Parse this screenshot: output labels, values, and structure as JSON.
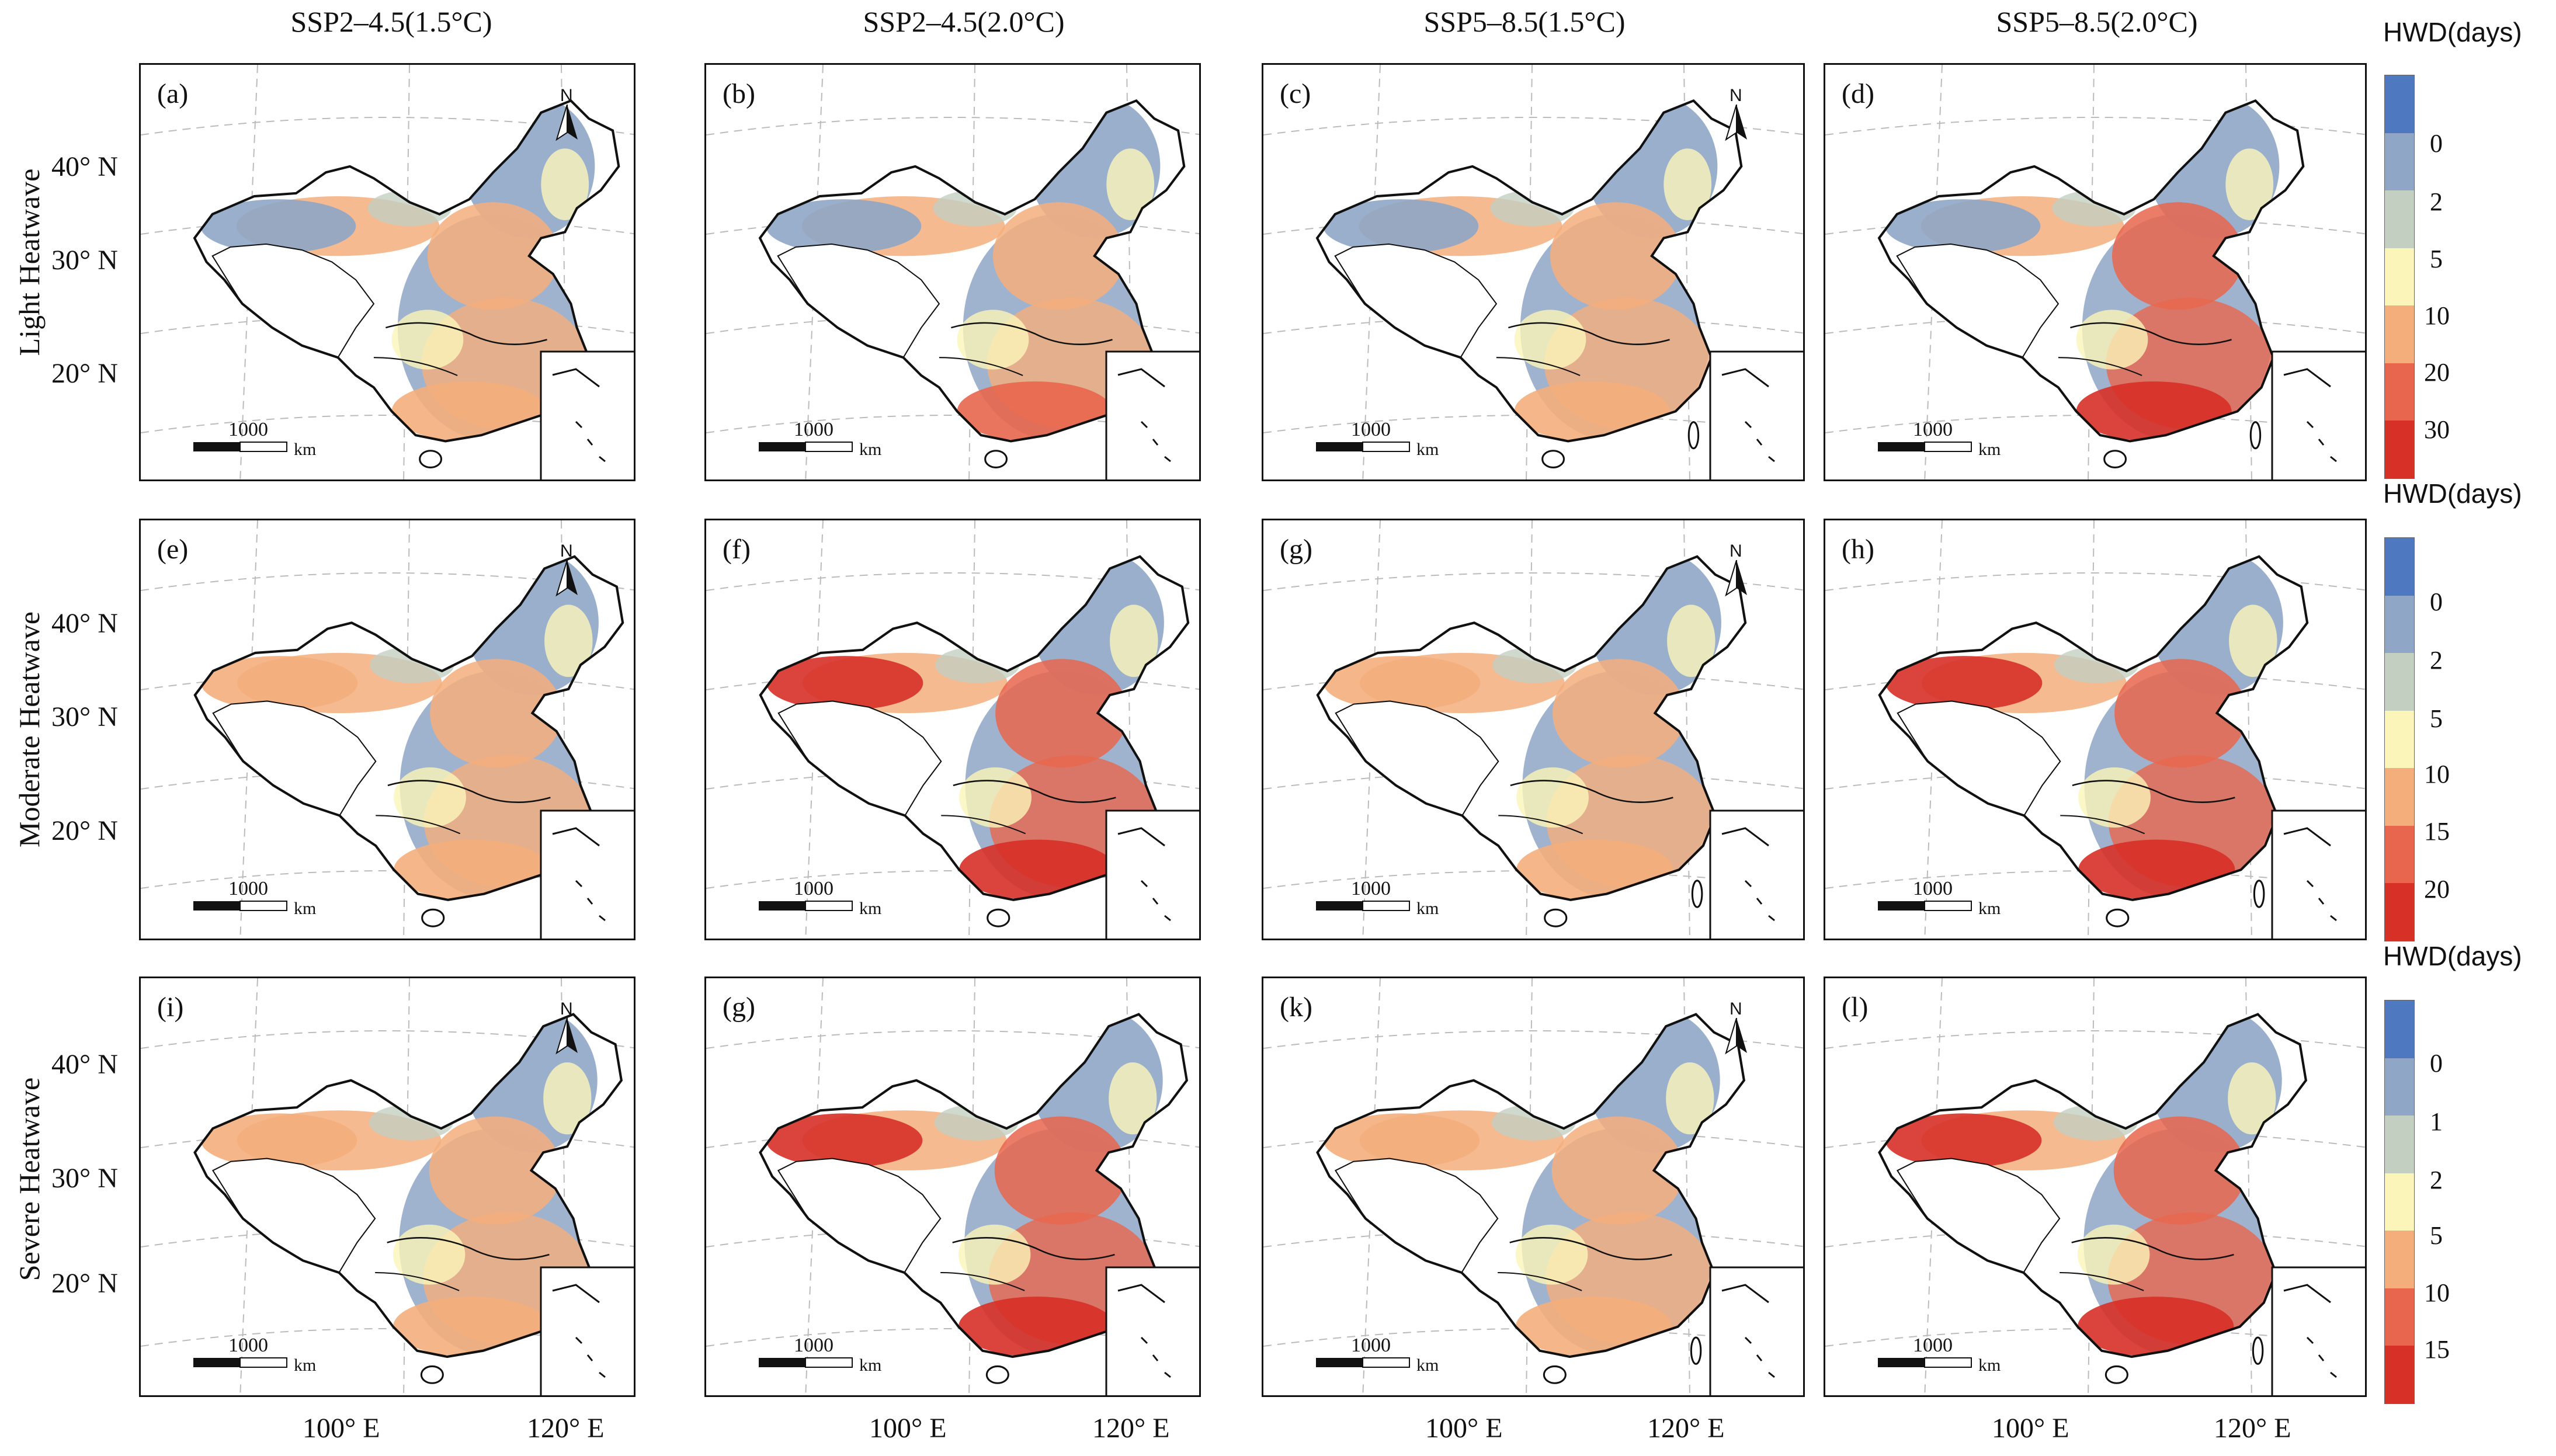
{
  "columns": [
    "SSP2–4.5(1.5°C)",
    "SSP2–4.5(2.0°C)",
    "SSP5–8.5(1.5°C)",
    "SSP5–8.5(2.0°C)"
  ],
  "rows": [
    "Light Heatwave",
    "Moderate Heatwave",
    "Severe Heatwave"
  ],
  "panels": [
    [
      "(a)",
      "(b)",
      "(c)",
      "(d)"
    ],
    [
      "(e)",
      "(f)",
      "(g)",
      "(h)"
    ],
    [
      "(i)",
      "(g)",
      "(k)",
      "(l)"
    ]
  ],
  "lat_labels": [
    "40° N",
    "30° N",
    "20° N"
  ],
  "lon_labels": [
    "100° E",
    "120° E"
  ],
  "scale_value": "1000",
  "scale_unit": "km",
  "north_label": "N",
  "legends": [
    {
      "title": "HWD(days)",
      "labels": [
        "0",
        "2",
        "5",
        "10",
        "20",
        "30"
      ]
    },
    {
      "title": "HWD(days)",
      "labels": [
        "0",
        "2",
        "5",
        "10",
        "15",
        "20"
      ]
    },
    {
      "title": "HWD(days)",
      "labels": [
        "0",
        "1",
        "2",
        "5",
        "10",
        "15"
      ]
    }
  ],
  "legend_colors": [
    "#4e79c0",
    "#8fa6c6",
    "#c3cfc1",
    "#fbf5b9",
    "#f4ae7c",
    "#e8664d",
    "#d73027"
  ],
  "panel_intensity": [
    [
      0.35,
      0.55,
      0.45,
      0.65
    ],
    [
      0.4,
      0.8,
      0.45,
      0.75
    ],
    [
      0.4,
      0.7,
      0.45,
      0.7
    ]
  ]
}
